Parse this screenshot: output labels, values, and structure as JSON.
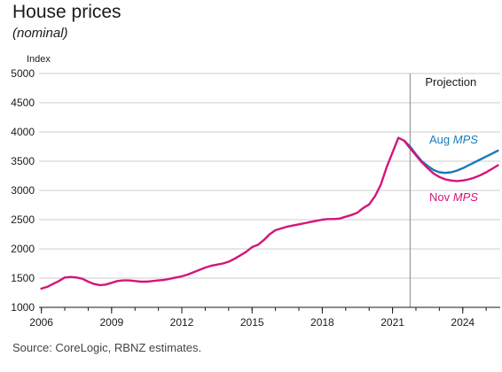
{
  "title": "House prices",
  "subtitle": "(nominal)",
  "source": "Source: CoreLogic, RBNZ estimates.",
  "chart_data": {
    "type": "line",
    "ylabel": "Index",
    "ylim": [
      1000,
      5000
    ],
    "yticks": [
      1000,
      1500,
      2000,
      2500,
      3000,
      3500,
      4000,
      4500,
      5000
    ],
    "xlim": [
      2005.9,
      2025.6
    ],
    "xticks": [
      2006,
      2009,
      2012,
      2015,
      2018,
      2021,
      2024
    ],
    "xtick_labels": [
      "2006",
      "2009",
      "2012",
      "2015",
      "2018",
      "2021",
      "2024"
    ],
    "grid": "horizontal",
    "projection_start": 2021.75,
    "projection_label": "Projection",
    "colors": {
      "nov": "#d4157a",
      "aug": "#1a7ab8",
      "divider": "#888888",
      "grid": "#cccccc"
    },
    "series": [
      {
        "key": "nov",
        "label_prefix": "Nov",
        "label_italic": "MPS",
        "x": [
          2006.0,
          2006.25,
          2006.5,
          2006.75,
          2007.0,
          2007.25,
          2007.5,
          2007.75,
          2008.0,
          2008.25,
          2008.5,
          2008.75,
          2009.0,
          2009.25,
          2009.5,
          2009.75,
          2010.0,
          2010.25,
          2010.5,
          2010.75,
          2011.0,
          2011.25,
          2011.5,
          2011.75,
          2012.0,
          2012.25,
          2012.5,
          2012.75,
          2013.0,
          2013.25,
          2013.5,
          2013.75,
          2014.0,
          2014.25,
          2014.5,
          2014.75,
          2015.0,
          2015.25,
          2015.5,
          2015.75,
          2016.0,
          2016.25,
          2016.5,
          2016.75,
          2017.0,
          2017.25,
          2017.5,
          2017.75,
          2018.0,
          2018.25,
          2018.5,
          2018.75,
          2019.0,
          2019.25,
          2019.5,
          2019.75,
          2020.0,
          2020.25,
          2020.5,
          2020.75,
          2021.0,
          2021.25,
          2021.5,
          2021.75,
          2022.0,
          2022.25,
          2022.5,
          2022.75,
          2023.0,
          2023.25,
          2023.5,
          2023.75,
          2024.0,
          2024.25,
          2024.5,
          2024.75,
          2025.0,
          2025.25,
          2025.5
        ],
        "y": [
          1320,
          1350,
          1400,
          1450,
          1510,
          1520,
          1510,
          1490,
          1440,
          1400,
          1380,
          1390,
          1420,
          1450,
          1460,
          1460,
          1450,
          1440,
          1440,
          1450,
          1460,
          1470,
          1490,
          1510,
          1530,
          1560,
          1600,
          1640,
          1680,
          1710,
          1730,
          1750,
          1780,
          1830,
          1890,
          1950,
          2030,
          2070,
          2150,
          2250,
          2320,
          2350,
          2380,
          2400,
          2420,
          2440,
          2460,
          2480,
          2500,
          2510,
          2510,
          2520,
          2550,
          2580,
          2620,
          2700,
          2760,
          2900,
          3100,
          3400,
          3650,
          3900,
          3850,
          3720,
          3600,
          3480,
          3380,
          3290,
          3230,
          3190,
          3170,
          3160,
          3170,
          3190,
          3220,
          3260,
          3310,
          3370,
          3430
        ]
      },
      {
        "key": "aug",
        "label_prefix": "Aug",
        "label_italic": "MPS",
        "x": [
          2021.5,
          2021.75,
          2022.0,
          2022.25,
          2022.5,
          2022.75,
          2023.0,
          2023.25,
          2023.5,
          2023.75,
          2024.0,
          2024.25,
          2024.5,
          2024.75,
          2025.0,
          2025.25,
          2025.5
        ],
        "y": [
          3850,
          3750,
          3620,
          3500,
          3420,
          3350,
          3310,
          3300,
          3310,
          3340,
          3380,
          3430,
          3480,
          3530,
          3580,
          3630,
          3680
        ]
      }
    ]
  }
}
